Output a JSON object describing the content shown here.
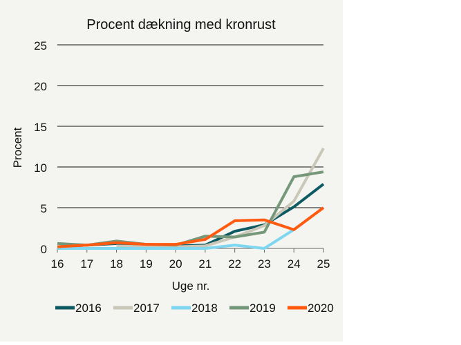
{
  "chart_data": {
    "type": "line",
    "title": "Procent dækning med kronrust",
    "xlabel": "Uge nr.",
    "ylabel": "Procent",
    "x": [
      16,
      17,
      18,
      19,
      20,
      21,
      22,
      23,
      24,
      25
    ],
    "ylim": [
      0,
      25
    ],
    "yticks": [
      0,
      5,
      10,
      15,
      20,
      25
    ],
    "grid": true,
    "legend_position": "bottom",
    "series": [
      {
        "name": "2016",
        "color": "#0e5a63",
        "values": [
          0.2,
          0.4,
          0.6,
          0.4,
          0.3,
          0.4,
          2.1,
          2.9,
          5.1,
          7.9
        ]
      },
      {
        "name": "2017",
        "color": "#c9c7b8",
        "values": [
          null,
          null,
          0.3,
          0.2,
          0.2,
          0.3,
          1.4,
          2.8,
          5.8,
          12.3
        ]
      },
      {
        "name": "2018",
        "color": "#7fd6f0",
        "values": [
          0,
          0,
          0,
          0,
          0,
          0,
          0.4,
          0,
          2.3,
          null
        ]
      },
      {
        "name": "2019",
        "color": "#76987a",
        "values": [
          0.6,
          0.4,
          0.9,
          0.5,
          0.4,
          1.5,
          1.4,
          2.0,
          8.8,
          9.4
        ]
      },
      {
        "name": "2020",
        "color": "#ff5a0f",
        "values": [
          0.2,
          0.4,
          0.7,
          0.5,
          0.5,
          1.1,
          3.4,
          3.5,
          2.3,
          5.0
        ]
      }
    ]
  }
}
